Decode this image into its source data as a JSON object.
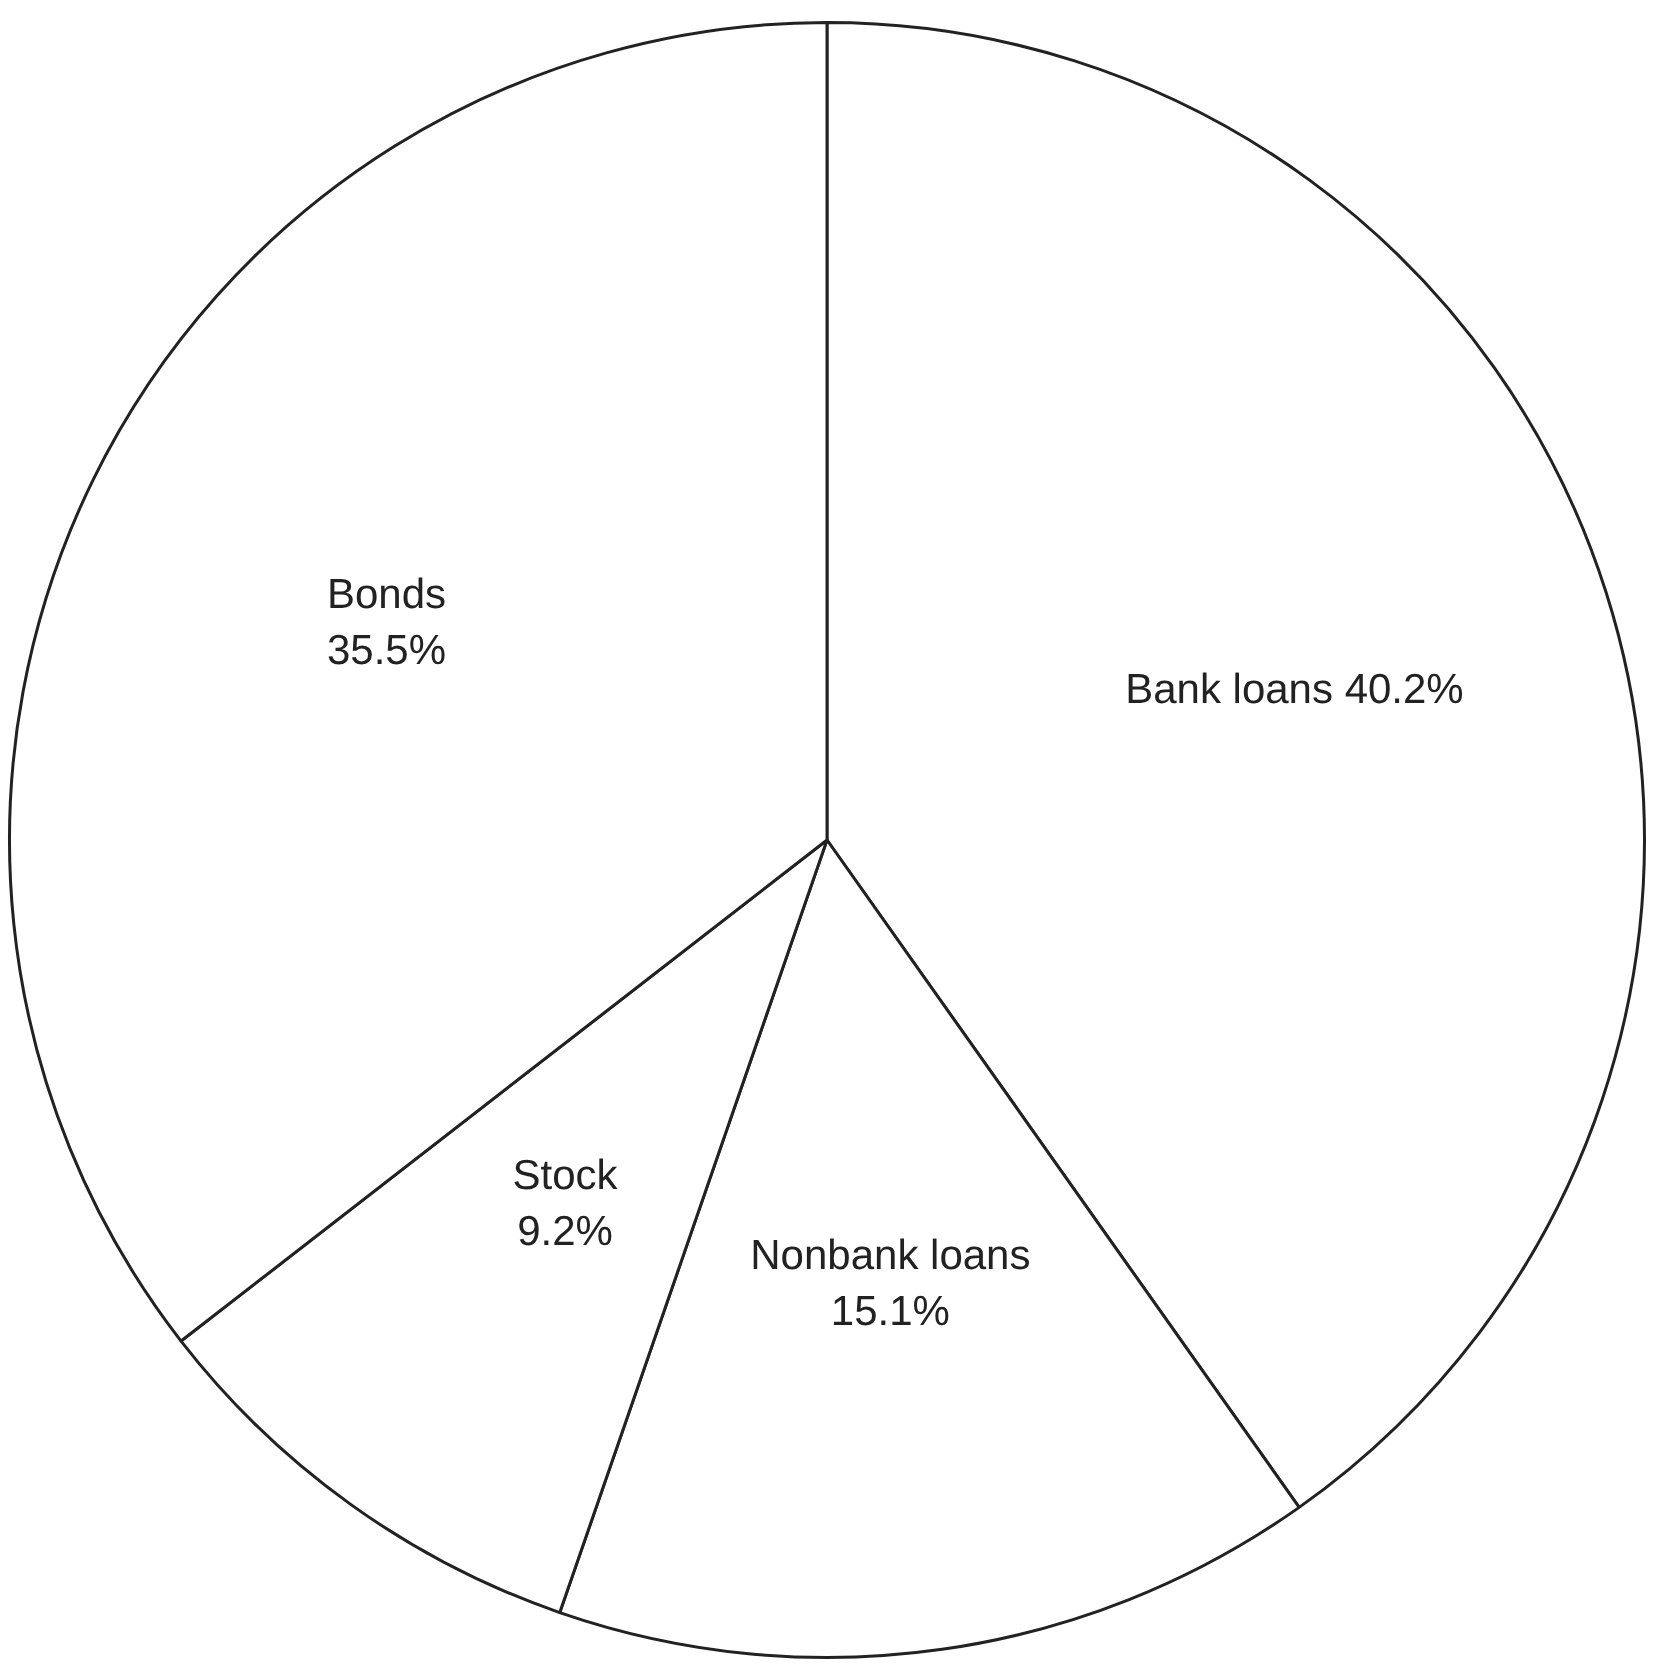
{
  "chart_data": {
    "type": "pie",
    "categories": [
      "Bank loans",
      "Nonbank loans",
      "Stock",
      "Bonds"
    ],
    "values": [
      40.2,
      15.1,
      9.2,
      35.5
    ],
    "colors": [
      "#ffffff",
      "#ffffff",
      "#ffffff",
      "#ffffff"
    ],
    "value_labels": [
      "40.2%",
      "15.1%",
      "9.2%",
      "35.5%"
    ],
    "legend": false
  }
}
